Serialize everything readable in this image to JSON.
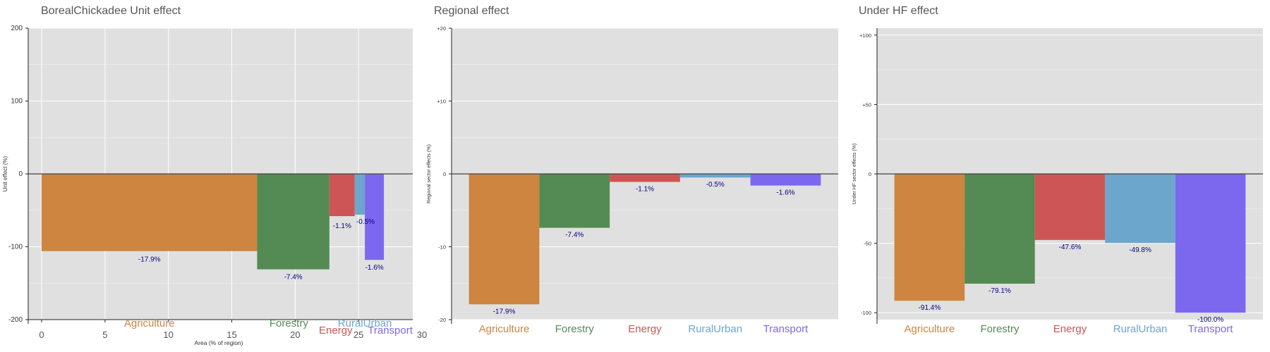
{
  "colors": {
    "Agriculture": "#CD853F",
    "Forestry": "#548B54",
    "Energy": "#CD5555",
    "RuralUrban": "#6CA6CD",
    "Transport": "#7B68EE",
    "panel_bg": "#E0E0E0",
    "label_text": "#000080",
    "title_text": "#555555"
  },
  "chart_data": [
    {
      "type": "bar",
      "title": "BorealChickadee Unit effect",
      "xlabel": "Area (% of region)",
      "ylabel": "Unit effect (%)",
      "ylim": [
        -200,
        200
      ],
      "yticks": [
        200,
        100,
        0,
        -100,
        -200
      ],
      "ytick_labels": [
        "200",
        "100",
        "0",
        "-100",
        "-200"
      ],
      "xlim": [
        0,
        30
      ],
      "xticks": [
        0,
        5,
        10,
        15,
        20,
        25,
        30
      ],
      "xtick_labels": [
        "0",
        "5",
        "10",
        "15",
        "20",
        "25",
        "30"
      ],
      "grid": true,
      "categories": [
        "Agriculture",
        "Forestry",
        "Energy",
        "RuralUrban",
        "Transport"
      ],
      "x_start": [
        0,
        17.0,
        22.7,
        24.7,
        25.5
      ],
      "width": [
        17.0,
        5.7,
        2.0,
        0.8,
        1.5
      ],
      "values": [
        -106,
        -131,
        -58,
        -56,
        -118
      ],
      "bar_labels": [
        "-17.9%",
        "-7.4%",
        "-1.1%",
        "-0.5%",
        "-1.6%"
      ]
    },
    {
      "type": "bar",
      "title": "Regional effect",
      "ylabel": "Regional sector effects (%)",
      "ylim": [
        -20,
        20
      ],
      "yticks": [
        20,
        10,
        0,
        -10,
        -20
      ],
      "ytick_labels": [
        "+20",
        "+10",
        "0",
        "-10",
        "-20"
      ],
      "grid": true,
      "categories": [
        "Agriculture",
        "Forestry",
        "Energy",
        "RuralUrban",
        "Transport"
      ],
      "values": [
        -17.9,
        -7.4,
        -1.1,
        -0.5,
        -1.6
      ],
      "bar_labels": [
        "-17.9%",
        "-7.4%",
        "-1.1%",
        "-0.5%",
        "-1.6%"
      ]
    },
    {
      "type": "bar",
      "title": "Under HF effect",
      "ylabel": "Under HF sector effects (%)",
      "ylim": [
        -105,
        105
      ],
      "yticks": [
        100,
        50,
        0,
        -50,
        -100
      ],
      "ytick_labels": [
        "+100",
        "+50",
        "0",
        "-50",
        "-100"
      ],
      "grid": true,
      "categories": [
        "Agriculture",
        "Forestry",
        "Energy",
        "RuralUrban",
        "Transport"
      ],
      "values": [
        -91.4,
        -79.1,
        -47.6,
        -49.8,
        -100.0
      ],
      "bar_labels": [
        "-91.4%",
        "-79.1%",
        "-47.6%",
        "-49.8%",
        "-100.0%"
      ]
    }
  ]
}
